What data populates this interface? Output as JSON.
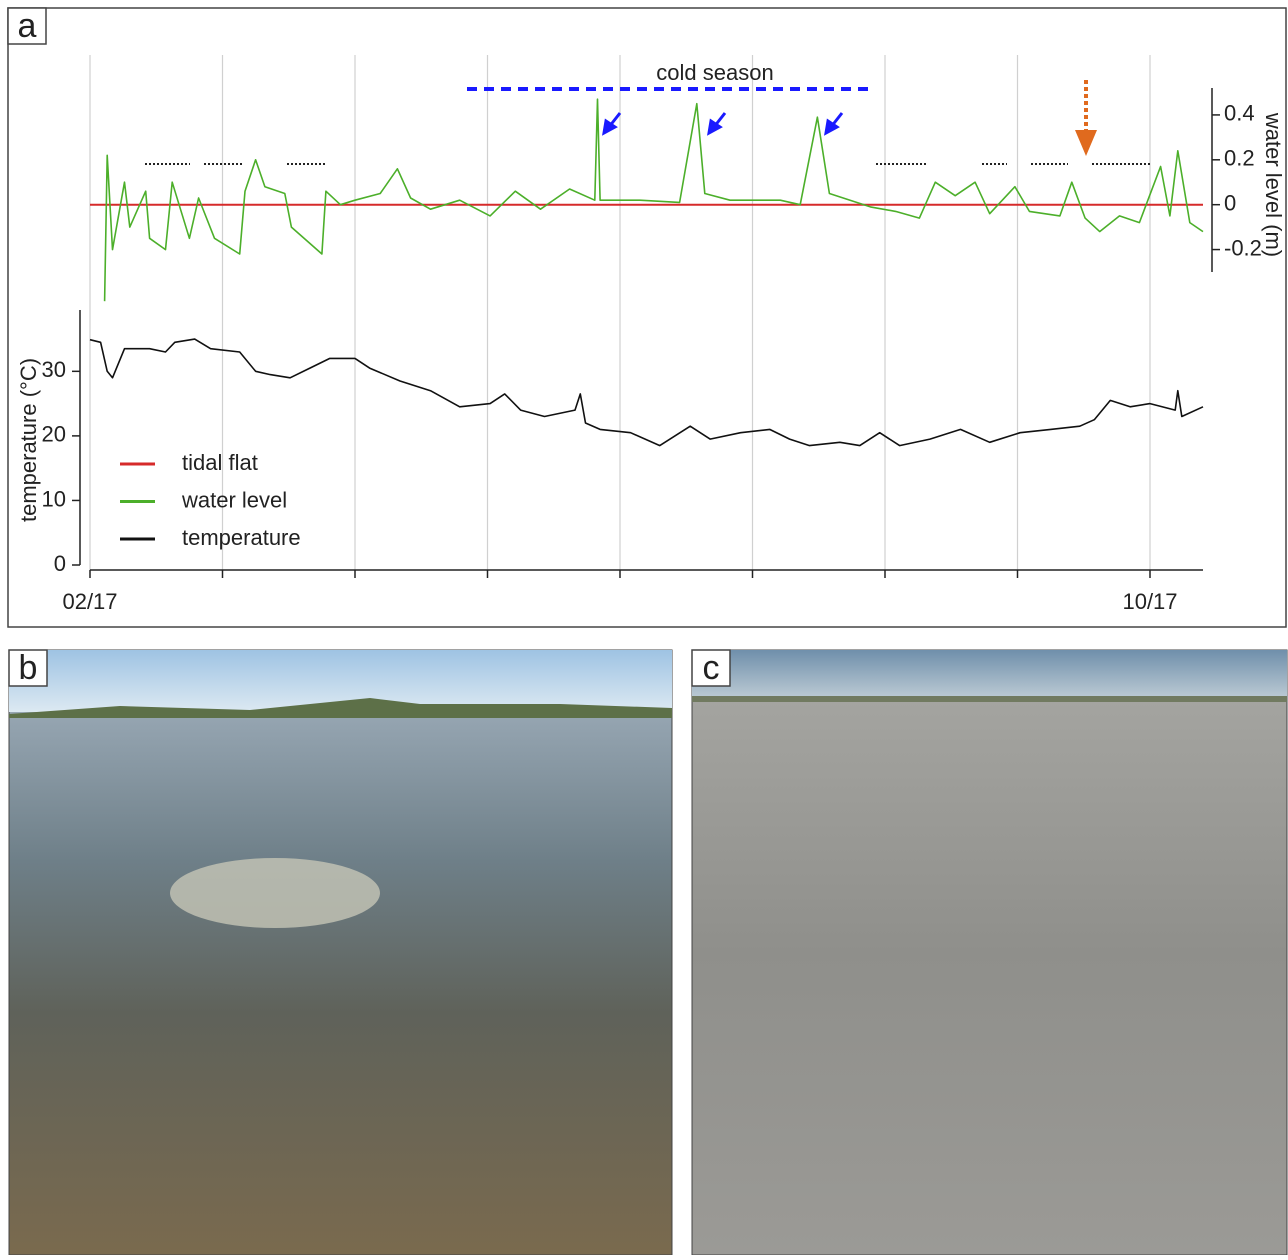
{
  "chart_data": {
    "type": "line",
    "panel_label": "a",
    "annotation": "cold season",
    "ylabel": "temperature (°C)",
    "y2label": "water level (m)",
    "xlim": [
      0,
      8.4
    ],
    "xticks": [
      {
        "value": 0,
        "label": "02/17"
      },
      {
        "value": 1,
        "label": null
      },
      {
        "value": 2,
        "label": null
      },
      {
        "value": 3,
        "label": null
      },
      {
        "value": 4,
        "label": null
      },
      {
        "value": 5,
        "label": null
      },
      {
        "value": 6,
        "label": null
      },
      {
        "value": 7,
        "label": null
      },
      {
        "value": 8,
        "label": "10/17"
      }
    ],
    "ylim": [
      0,
      39.5
    ],
    "yticks": [
      0,
      10,
      20,
      30
    ],
    "y2lim": [
      -0.3,
      0.52
    ],
    "y2ticks": [
      -0.2,
      0,
      0.2,
      0.4
    ],
    "grid": true,
    "legend": "lower left",
    "series": [
      {
        "name": "tidal flat",
        "color": "#d62a2a",
        "axis": "y2",
        "x": [
          0,
          8.4
        ],
        "values": [
          0,
          0
        ]
      },
      {
        "name": "water level",
        "color": "#4caf2a",
        "axis": "y2",
        "x": [
          0.11,
          0.13,
          0.17,
          0.26,
          0.3,
          0.42,
          0.45,
          0.57,
          0.62,
          0.75,
          0.82,
          0.94,
          1.13,
          1.17,
          1.25,
          1.32,
          1.47,
          1.52,
          1.75,
          1.78,
          1.89,
          2.0,
          2.19,
          2.32,
          2.42,
          2.57,
          2.79,
          3.02,
          3.21,
          3.4,
          3.62,
          3.81,
          3.83,
          3.85,
          4.15,
          4.45,
          4.58,
          4.64,
          4.83,
          5.21,
          5.36,
          5.49,
          5.58,
          5.89,
          6.08,
          6.26,
          6.38,
          6.53,
          6.68,
          6.79,
          6.98,
          7.09,
          7.32,
          7.41,
          7.51,
          7.62,
          7.77,
          7.92,
          8.08,
          8.15,
          8.21,
          8.3,
          8.4
        ],
        "values": [
          -0.43,
          0.22,
          -0.2,
          0.1,
          -0.1,
          0.06,
          -0.15,
          -0.2,
          0.1,
          -0.15,
          0.03,
          -0.15,
          -0.22,
          0.06,
          0.2,
          0.08,
          0.05,
          -0.1,
          -0.22,
          0.06,
          0.0,
          0.02,
          0.05,
          0.16,
          0.03,
          -0.02,
          0.02,
          -0.05,
          0.06,
          -0.02,
          0.07,
          0.02,
          0.47,
          0.02,
          0.02,
          0.01,
          0.45,
          0.05,
          0.02,
          0.02,
          0.0,
          0.39,
          0.05,
          -0.01,
          -0.03,
          -0.06,
          0.1,
          0.04,
          0.1,
          -0.04,
          0.08,
          -0.03,
          -0.05,
          0.1,
          -0.06,
          -0.12,
          -0.05,
          -0.08,
          0.17,
          -0.05,
          0.24,
          -0.08,
          -0.12
        ]
      },
      {
        "name": "temperature",
        "color": "#111111",
        "axis": "y",
        "x": [
          0,
          0.08,
          0.13,
          0.17,
          0.26,
          0.45,
          0.57,
          0.64,
          0.79,
          0.91,
          1.13,
          1.25,
          1.36,
          1.51,
          1.66,
          1.81,
          2.0,
          2.11,
          2.34,
          2.57,
          2.79,
          3.02,
          3.13,
          3.25,
          3.43,
          3.66,
          3.7,
          3.74,
          3.85,
          4.08,
          4.3,
          4.53,
          4.68,
          4.91,
          5.13,
          5.28,
          5.43,
          5.66,
          5.81,
          5.96,
          6.11,
          6.34,
          6.57,
          6.79,
          7.02,
          7.25,
          7.47,
          7.58,
          7.7,
          7.85,
          8.0,
          8.19,
          8.21,
          8.24,
          8.4
        ],
        "values": [
          34.9,
          34.5,
          30,
          29,
          33.5,
          33.5,
          33,
          34.5,
          35,
          33.5,
          33,
          30,
          29.5,
          29,
          30.5,
          32,
          32,
          30.5,
          28.5,
          27,
          24.5,
          25,
          26.5,
          24,
          23,
          24,
          26.5,
          22,
          21,
          20.5,
          18.5,
          21.5,
          19.5,
          20.5,
          21,
          19.5,
          18.5,
          19,
          18.5,
          20.5,
          18.5,
          19.5,
          21,
          19,
          20.5,
          21,
          21.5,
          22.5,
          25.5,
          24.5,
          25,
          24,
          27,
          23,
          24.5
        ]
      }
    ]
  },
  "panel_labels": [
    "b",
    "c"
  ]
}
